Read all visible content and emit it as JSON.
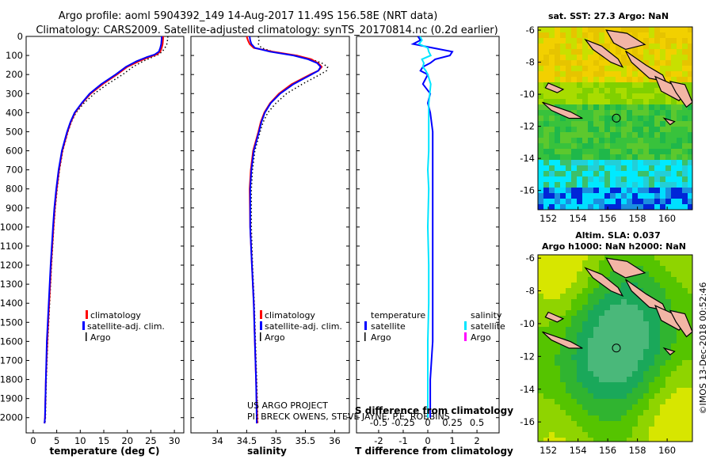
{
  "header": {
    "line1": "Argo profile: aoml 5904392_149 14-Aug-2017 11.49S 156.58E (NRT data)",
    "line2": "Climatology: CARS2009. Satellite-adjusted climatology: synTS_20170814.nc (0.2d earlier)"
  },
  "colors": {
    "climatology": "#ff0000",
    "satellite": "#0000ff",
    "argo": "#000000",
    "satellite_salinity": "#00e5ff",
    "argo_salinity": "#ff00ff",
    "land": "#f2b5a5"
  },
  "credits": {
    "project_line1": "US ARGO PROJECT",
    "project_line2": "PI: BRECK OWENS, STEVE JAYNE, P.E. ROBBINS",
    "imos": "©IMOS 13-Dec-2018 00:52:46"
  },
  "depth_axis": {
    "ticks": [
      0,
      100,
      200,
      300,
      400,
      500,
      600,
      700,
      800,
      900,
      1000,
      1100,
      1200,
      1300,
      1400,
      1500,
      1600,
      1700,
      1800,
      1900,
      2000
    ],
    "range": [
      0,
      2080
    ]
  },
  "chart_data": [
    {
      "type": "line",
      "name": "temperature-profile",
      "xlabel": "temperature (deg C)",
      "ylabel": "",
      "xlim": [
        -1.5,
        32
      ],
      "ylim": [
        2080,
        0
      ],
      "xticks": [
        0,
        5,
        10,
        15,
        20,
        25,
        30
      ],
      "xtick_labels": [
        "0",
        "5",
        "10",
        "15",
        "20",
        "25",
        "30"
      ],
      "depth": [
        0,
        10,
        40,
        60,
        80,
        95,
        110,
        130,
        160,
        200,
        250,
        300,
        350,
        400,
        450,
        500,
        600,
        700,
        800,
        900,
        1000,
        1200,
        1400,
        1600,
        1800,
        2000,
        2030
      ],
      "legend": {
        "climatology": "climatology",
        "satellite": "satellite-adj. clim.",
        "argo": "Argo"
      },
      "series": [
        {
          "name": "climatology",
          "values": [
            27.6,
            27.6,
            27.5,
            27.3,
            27.0,
            26.2,
            24.5,
            22.5,
            20.0,
            17.8,
            14.8,
            12.2,
            10.4,
            8.9,
            8.0,
            7.3,
            6.2,
            5.5,
            5.0,
            4.6,
            4.3,
            3.8,
            3.4,
            3.0,
            2.7,
            2.5,
            2.4
          ]
        },
        {
          "name": "satellite-adj. clim.",
          "values": [
            27.3,
            27.3,
            27.2,
            27.0,
            26.7,
            25.8,
            24.0,
            22.0,
            19.7,
            17.5,
            14.5,
            12.0,
            10.3,
            8.8,
            7.9,
            7.2,
            6.1,
            5.4,
            4.9,
            4.5,
            4.2,
            3.7,
            3.3,
            2.9,
            2.7,
            2.5,
            2.4
          ]
        },
        {
          "name": "Argo",
          "values": [
            28.6,
            28.6,
            28.4,
            28.0,
            27.4,
            26.6,
            25.2,
            23.4,
            21.2,
            19.0,
            15.8,
            13.0,
            10.8,
            9.1,
            8.1,
            7.4,
            6.3,
            5.6,
            5.1,
            4.7,
            4.4,
            3.9,
            3.5,
            3.1,
            2.8,
            2.6,
            2.5
          ]
        }
      ]
    },
    {
      "type": "line",
      "name": "salinity-profile",
      "xlabel": "salinity",
      "ylabel": "",
      "xlim": [
        33.55,
        36.25
      ],
      "ylim": [
        2080,
        0
      ],
      "xticks": [
        34,
        34.5,
        35,
        35.5,
        36
      ],
      "xtick_labels": [
        "34",
        "34.5",
        "35",
        "35.5",
        "36"
      ],
      "depth": [
        0,
        20,
        40,
        60,
        80,
        100,
        120,
        140,
        160,
        180,
        200,
        250,
        300,
        350,
        400,
        450,
        500,
        600,
        700,
        800,
        1000,
        1200,
        1400,
        1600,
        1800,
        2000,
        2030
      ],
      "legend": {
        "climatology": "climatology",
        "satellite": "satellite-adj. clim.",
        "argo": "Argo"
      },
      "series": [
        {
          "name": "climatology",
          "values": [
            34.5,
            34.52,
            34.55,
            34.62,
            34.95,
            35.35,
            35.6,
            35.72,
            35.78,
            35.72,
            35.58,
            35.27,
            35.05,
            34.9,
            34.8,
            34.74,
            34.7,
            34.61,
            34.57,
            34.55,
            34.56,
            34.59,
            34.62,
            34.64,
            34.66,
            34.68,
            34.68
          ]
        },
        {
          "name": "satellite-adj. clim.",
          "values": [
            34.55,
            34.56,
            34.58,
            34.64,
            34.9,
            35.3,
            35.55,
            35.7,
            35.76,
            35.72,
            35.6,
            35.3,
            35.07,
            34.91,
            34.81,
            34.75,
            34.71,
            34.62,
            34.58,
            34.56,
            34.56,
            34.59,
            34.62,
            34.64,
            34.66,
            34.67,
            34.67
          ]
        },
        {
          "name": "Argo",
          "values": [
            34.7,
            34.71,
            34.7,
            34.75,
            34.95,
            35.3,
            35.6,
            35.78,
            35.88,
            35.86,
            35.75,
            35.45,
            35.18,
            35.0,
            34.86,
            34.78,
            34.73,
            34.64,
            34.6,
            34.58,
            34.58,
            34.6,
            34.63,
            34.65,
            34.67,
            34.69,
            34.69
          ]
        }
      ]
    },
    {
      "type": "line",
      "name": "difference-profile",
      "title_top": "S difference from climatology",
      "xlabel": "T difference from climatology",
      "xlim": [
        -2.9,
        2.9
      ],
      "ylim": [
        2080,
        0
      ],
      "xticks": [
        -2,
        -1,
        0,
        1,
        2
      ],
      "xtick_labels": [
        "-2",
        "-1",
        "0",
        "1",
        "2"
      ],
      "top_ticks": [
        -0.5,
        -0.25,
        0,
        0.25,
        0.5
      ],
      "top_tick_labels": [
        "-0.5",
        "-0.25",
        "0",
        "0.25",
        "0.5"
      ],
      "top_scale": 0.5,
      "depth": [
        0,
        20,
        40,
        60,
        80,
        100,
        120,
        140,
        160,
        180,
        200,
        250,
        300,
        350,
        400,
        500,
        600,
        700,
        800,
        1000,
        1200,
        1400,
        1600,
        1800,
        2000
      ],
      "legend": {
        "temperature_heading": "temperature",
        "salinity_heading": "salinity",
        "satellite": "satellite",
        "argo": "Argo"
      },
      "series": [
        {
          "name": "temperature satellite",
          "values": [
            -0.4,
            -0.3,
            -0.6,
            0.2,
            1.0,
            0.9,
            0.3,
            0.1,
            -0.2,
            -0.3,
            0.0,
            -0.2,
            0.1,
            0.0,
            0.1,
            0.2,
            0.2,
            0.2,
            0.2,
            0.2,
            0.2,
            0.2,
            0.2,
            0.1,
            0.1
          ]
        },
        {
          "name": "salinity satellite",
          "values": [
            -0.08,
            -0.06,
            -0.09,
            0.0,
            0.01,
            0.03,
            -0.06,
            -0.04,
            -0.05,
            -0.02,
            0.0,
            0.03,
            0.02,
            0.01,
            0.01,
            0.01,
            0.01,
            0.0,
            0.01,
            0.0,
            0.01,
            0.01,
            0.0,
            0.0,
            0.0
          ]
        }
      ]
    }
  ],
  "maps": {
    "sst": {
      "title": "sat. SST: 27.3 Argo: NaN",
      "lat_ticks": [
        -6,
        -8,
        -10,
        -12,
        -14,
        -16
      ],
      "lat_labels": [
        "-6",
        "-8",
        "-10",
        "-12",
        "-14",
        "-16"
      ],
      "lon_ticks": [
        152,
        154,
        156,
        158,
        160
      ],
      "lon_labels": [
        "152",
        "154",
        "156",
        "158",
        "160"
      ],
      "lon_range": [
        151.3,
        161.7
      ],
      "lat_range": [
        -17.2,
        -5.8
      ],
      "float_position": {
        "lon": 156.58,
        "lat": -11.49
      }
    },
    "sla": {
      "title_line1": "Altim. SLA: 0.037",
      "title_line2": "Argo h1000: NaN h2000: NaN",
      "lat_ticks": [
        -6,
        -8,
        -10,
        -12,
        -14,
        -16
      ],
      "lat_labels": [
        "-6",
        "-8",
        "-10",
        "-12",
        "-14",
        "-16"
      ],
      "lon_ticks": [
        152,
        154,
        156,
        158,
        160
      ],
      "lon_labels": [
        "152",
        "154",
        "156",
        "158",
        "160"
      ],
      "lon_range": [
        151.3,
        161.7
      ],
      "lat_range": [
        -17.2,
        -5.8
      ],
      "float_position": {
        "lon": 156.58,
        "lat": -11.49
      }
    }
  }
}
